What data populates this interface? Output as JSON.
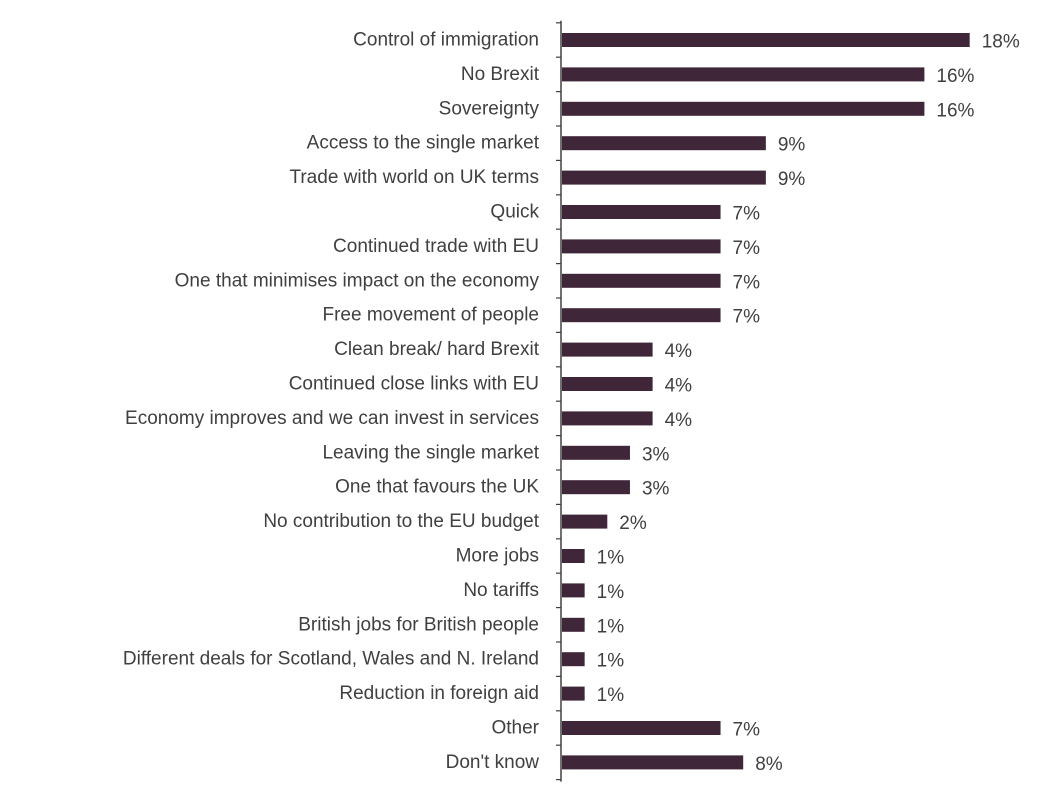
{
  "chart_data": {
    "type": "bar",
    "orientation": "horizontal",
    "categories": [
      "Control of immigration",
      "No Brexit",
      "Sovereignty",
      "Access to the single market",
      "Trade with world on UK terms",
      "Quick",
      "Continued trade with EU",
      "One that minimises impact on the economy",
      "Free movement of people",
      "Clean break/ hard Brexit",
      "Continued close links with EU",
      "Economy improves and we can invest in services",
      "Leaving the single market",
      "One that favours the UK",
      "No contribution to the EU budget",
      "More jobs",
      "No tariffs",
      "British jobs for British people",
      "Different deals for Scotland, Wales and N. Ireland",
      "Reduction in foreign aid",
      "Other",
      "Don't know"
    ],
    "values": [
      18,
      16,
      16,
      9,
      9,
      7,
      7,
      7,
      7,
      4,
      4,
      4,
      3,
      3,
      2,
      1,
      1,
      1,
      1,
      1,
      7,
      8
    ],
    "value_labels": [
      "18%",
      "16%",
      "16%",
      "9%",
      "9%",
      "7%",
      "7%",
      "7%",
      "7%",
      "4%",
      "4%",
      "4%",
      "3%",
      "3%",
      "2%",
      "1%",
      "1%",
      "1%",
      "1%",
      "1%",
      "7%",
      "8%"
    ],
    "unit": "%",
    "xlim": [
      0,
      18
    ],
    "bar_color": "#3f2639",
    "axis_color": "#404040",
    "grid": false,
    "legend": "none"
  }
}
